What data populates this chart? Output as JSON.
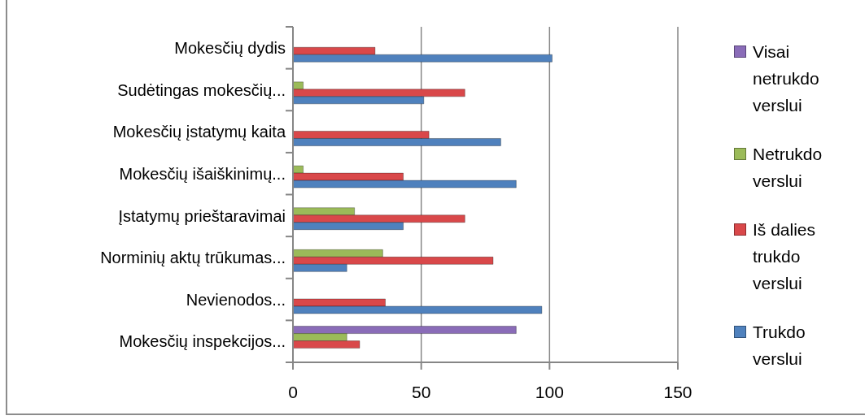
{
  "chart_data": {
    "type": "bar",
    "orientation": "horizontal",
    "categories": [
      "Mokesčių dydis",
      "Sudėtingas mokesčių...",
      "Mokesčių įstatymų kaita",
      "Mokesčių išaiškinimų...",
      "Įstatymų prieštaravimai",
      "Norminių aktų trūkumas...",
      "Nevienodos...",
      "Mokesčių inspekcijos..."
    ],
    "series": [
      {
        "name": "Trukdo verslui",
        "color": "#4f81bd",
        "values": [
          101,
          51,
          81,
          87,
          43,
          21,
          97,
          null
        ]
      },
      {
        "name": "Iš dalies trukdo verslui",
        "color": "#d9484a",
        "values": [
          32,
          67,
          53,
          43,
          67,
          78,
          36,
          26
        ]
      },
      {
        "name": "Netrukdo verslui",
        "color": "#9bbb59",
        "values": [
          null,
          4,
          null,
          4,
          24,
          35,
          null,
          21
        ]
      },
      {
        "name": "Visai netrukdo verslui",
        "color": "#8a6cb8",
        "values": [
          null,
          null,
          null,
          null,
          null,
          null,
          null,
          87
        ]
      }
    ],
    "xlim": [
      0,
      150
    ],
    "xticks": [
      0,
      50,
      100,
      150
    ],
    "grid": "x",
    "legend": "right"
  }
}
